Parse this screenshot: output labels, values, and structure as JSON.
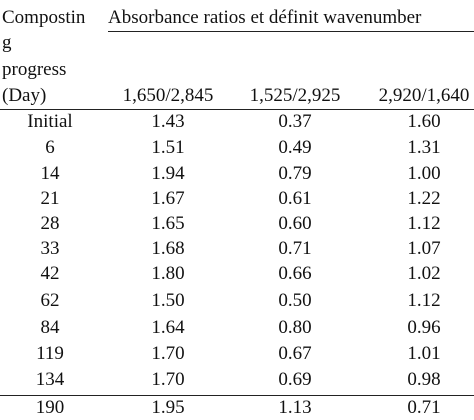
{
  "table": {
    "stub_header": [
      "Compostin",
      "g",
      "progress",
      "(Day)"
    ],
    "group_header": "Absorbance ratios et définit wavenumber",
    "columns": [
      "1,650/2,845",
      "1,525/2,925",
      "2,920/1,640"
    ],
    "rows": [
      [
        "Initial",
        "1.43",
        "0.37",
        "1.60"
      ],
      [
        "6",
        "1.51",
        "0.49",
        "1.31"
      ],
      [
        "14",
        "1.94",
        "0.79",
        "1.00"
      ],
      [
        "21",
        "1.67",
        "0.61",
        "1.22"
      ],
      [
        "28",
        "1.65",
        "0.60",
        "1.12"
      ],
      [
        "33",
        "1.68",
        "0.71",
        "1.07"
      ],
      [
        "42",
        "1.80",
        "0.66",
        "1.02"
      ],
      [
        "62",
        "1.50",
        "0.50",
        "1.12"
      ],
      [
        "84",
        "1.64",
        "0.80",
        "0.96"
      ],
      [
        "119",
        "1.70",
        "0.67",
        "1.01"
      ],
      [
        "134",
        "1.70",
        "0.69",
        "0.98"
      ],
      [
        "190",
        "1.95",
        "1.13",
        "0.71"
      ]
    ]
  }
}
